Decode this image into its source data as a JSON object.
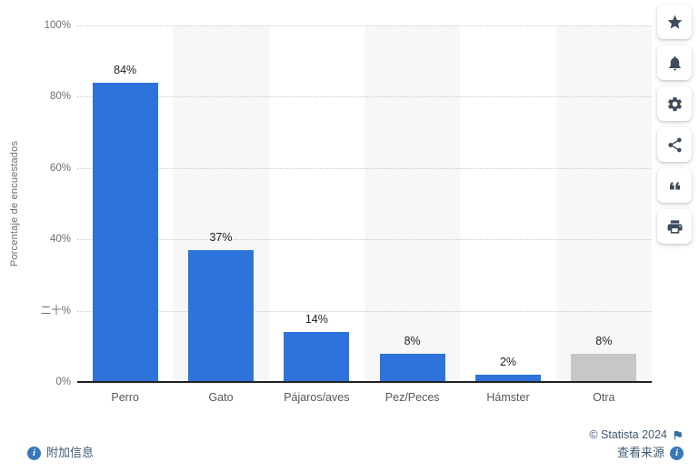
{
  "chart_data": {
    "type": "bar",
    "categories": [
      "Perro",
      "Gato",
      "Pájaros/aves",
      "Pez/Peces",
      "Hámster",
      "Otra"
    ],
    "values": [
      84,
      37,
      14,
      8,
      2,
      8
    ],
    "value_labels": [
      "84%",
      "37%",
      "14%",
      "8%",
      "2%",
      "8%"
    ],
    "bar_colors": [
      "#2e73dc",
      "#2e73dc",
      "#2e73dc",
      "#2e73dc",
      "#2e73dc",
      "#c7c7c7"
    ],
    "title": "",
    "xlabel": "",
    "ylabel": "Porcentaje de encuestados",
    "ylim": [
      0,
      100
    ],
    "ytick_values": [
      0,
      20,
      40,
      60,
      80,
      100
    ],
    "ytick_labels": [
      "0%",
      "二十%",
      "40%",
      "60%",
      "80%",
      "100%"
    ],
    "grid": "horizontal-dotted",
    "legend": "none",
    "shaded_columns": [
      1,
      3,
      5
    ],
    "shaded_column_color": "#f7f7f7"
  },
  "toolbar": {
    "buttons": [
      {
        "name": "favorite-button",
        "icon": "star-icon"
      },
      {
        "name": "notifications-button",
        "icon": "bell-icon"
      },
      {
        "name": "settings-button",
        "icon": "gear-icon"
      },
      {
        "name": "share-button",
        "icon": "share-icon"
      },
      {
        "name": "cite-button",
        "icon": "quote-icon"
      },
      {
        "name": "print-button",
        "icon": "printer-icon"
      }
    ]
  },
  "footer": {
    "copyright": "© Statista 2024",
    "additional_info_label": "附加信息",
    "view_source_label": "查看来源"
  },
  "colors": {
    "bar_blue": "#2e73dc",
    "bar_gray": "#c7c7c7",
    "band_gray": "#f7f7f7",
    "gridline": "#c9c9c9",
    "axis_line": "#212125",
    "tick_text": "#6e6e71",
    "category_text": "#56575b",
    "value_text": "#1f1f23",
    "footer_link": "#3e5a76",
    "info_icon_blue": "#3579b8",
    "toolbar_icon": "#3d4b5c"
  }
}
